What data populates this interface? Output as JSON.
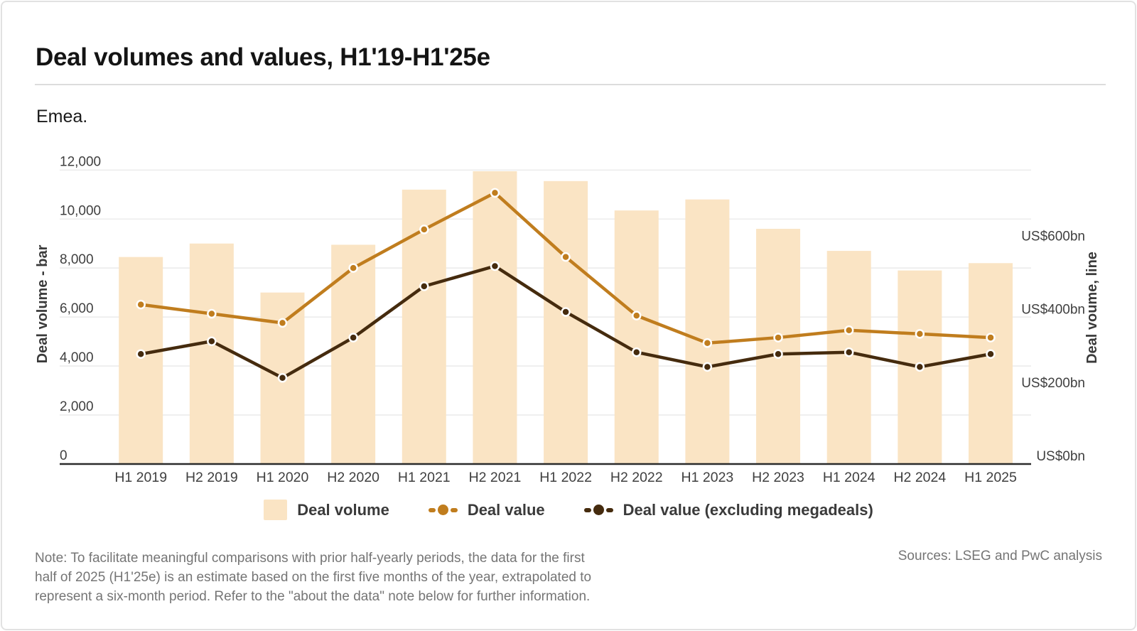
{
  "header": {
    "title": "Deal volumes and values, H1'19-H1'25e",
    "region": "Emea."
  },
  "chart_data": {
    "type": "combo-bar-line",
    "categories": [
      "H1 2019",
      "H2 2019",
      "H1 2020",
      "H2 2020",
      "H1 2021",
      "H2 2021",
      "H1 2022",
      "H2 2022",
      "H1 2023",
      "H2 2023",
      "H1 2024",
      "H2 2024",
      "H1 2025"
    ],
    "series": [
      {
        "name": "Deal volume",
        "type": "bar",
        "axis": "left",
        "color": "#FAE4C4",
        "values": [
          8450,
          9000,
          7000,
          8950,
          11200,
          11950,
          11550,
          10350,
          10800,
          9600,
          8700,
          7900,
          8200
        ]
      },
      {
        "name": "Deal value",
        "type": "line",
        "axis": "right",
        "color": "#C07D1E",
        "values": [
          435,
          410,
          385,
          535,
          640,
          740,
          565,
          405,
          330,
          345,
          365,
          355,
          345
        ]
      },
      {
        "name": "Deal value (excluding megadeals)",
        "type": "line",
        "axis": "right",
        "color": "#452B0E",
        "values": [
          300,
          335,
          235,
          345,
          485,
          540,
          415,
          305,
          265,
          300,
          305,
          265,
          300
        ]
      }
    ],
    "left_axis": {
      "title": "Deal volume - bar",
      "ticks": [
        0,
        2000,
        4000,
        6000,
        8000,
        10000,
        12000
      ],
      "tick_labels": [
        "0",
        "2,000",
        "4,000",
        "6,000",
        "8,000",
        "10,000",
        "12,000"
      ],
      "range": [
        0,
        12000
      ]
    },
    "right_axis": {
      "title": "Deal voume, line",
      "ticks": [
        0,
        200,
        400,
        600
      ],
      "tick_labels": [
        "US$0bn",
        "US$200bn",
        "US$400bn",
        "US$600bn"
      ],
      "range": [
        0,
        800
      ]
    },
    "grid": "horizontal",
    "legend_position": "bottom"
  },
  "legend": {
    "items": [
      {
        "label": "Deal volume",
        "marker": "bar-swatch"
      },
      {
        "label": "Deal value",
        "marker": "dash-dot-line"
      },
      {
        "label": "Deal value (excluding megadeals)",
        "marker": "dash-dot-line"
      }
    ]
  },
  "note": {
    "lines": [
      "Note: To facilitate meaningful comparisons with prior half-yearly periods, the data for the first",
      "half of 2025 (H1'25e) is an estimate based on the first five months of the year, extrapolated to",
      "represent a six-month period. Refer to the \"about the data\" note below for further information."
    ]
  },
  "sources": "Sources: LSEG and PwC analysis",
  "colors": {
    "bar": "#FAE4C4",
    "deal_value_line": "#C07D1E",
    "deal_value_ex_megadeals_line": "#452B0E",
    "grid": "#ECECEC",
    "axis_line": "#2B2B2B",
    "text_dark": "#141414",
    "text_axis": "#3F3F3F",
    "text_muted": "#757575",
    "divider": "#DCDCDC",
    "card_border": "#E2E2E2"
  }
}
